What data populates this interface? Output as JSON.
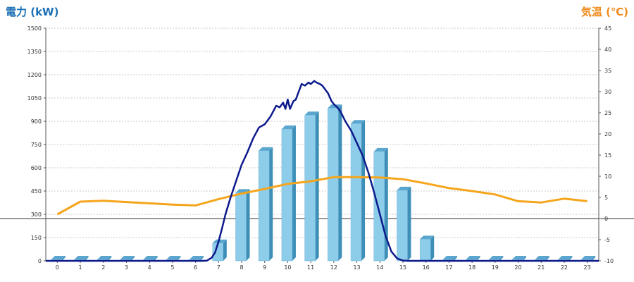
{
  "chart_data": {
    "type": "bar",
    "title": "",
    "left_axis": {
      "label": "電力 (kW)",
      "range": [
        0,
        1500
      ],
      "ticks": [
        0,
        150,
        300,
        450,
        600,
        750,
        900,
        1050,
        1200,
        1350,
        1500
      ]
    },
    "right_axis": {
      "label": "気温 (℃)",
      "range": [
        -10,
        45
      ],
      "ticks": [
        -10,
        -5,
        0,
        5,
        10,
        15,
        20,
        25,
        30,
        35,
        40,
        45
      ]
    },
    "categories": [
      "0",
      "1",
      "2",
      "3",
      "4",
      "5",
      "6",
      "7",
      "8",
      "9",
      "10",
      "11",
      "12",
      "13",
      "14",
      "15",
      "16",
      "17",
      "18",
      "19",
      "20",
      "21",
      "22",
      "23"
    ],
    "grid": true,
    "legend": "none",
    "series": [
      {
        "type": "bar",
        "axis": "left",
        "values": [
          0,
          0,
          0,
          0,
          0,
          0,
          0,
          115,
          440,
          710,
          850,
          940,
          985,
          885,
          705,
          455,
          140,
          0,
          0,
          0,
          0,
          0,
          0,
          0
        ]
      },
      {
        "type": "line",
        "axis": "right",
        "x": [
          0,
          1,
          2,
          3,
          4,
          5,
          6,
          7,
          8,
          9,
          10,
          11,
          12,
          13,
          14,
          15,
          16,
          17,
          18,
          19,
          20,
          21,
          22,
          23
        ],
        "values": [
          1.0,
          4.0,
          4.2,
          3.9,
          3.6,
          3.3,
          3.1,
          4.6,
          5.9,
          7.0,
          8.2,
          8.8,
          9.8,
          9.8,
          9.7,
          9.3,
          8.3,
          7.2,
          6.5,
          5.7,
          4.1,
          3.8,
          4.7,
          4.1
        ]
      },
      {
        "type": "line",
        "axis": "left",
        "x": [
          6.3,
          6.5,
          6.7,
          6.85,
          7.0,
          7.15,
          7.3,
          7.5,
          7.75,
          8.0,
          8.25,
          8.5,
          8.75,
          9.0,
          9.25,
          9.5,
          9.65,
          9.8,
          9.9,
          10.0,
          10.1,
          10.25,
          10.35,
          10.5,
          10.6,
          10.75,
          10.9,
          11.0,
          11.15,
          11.25,
          11.4,
          11.5,
          11.6,
          11.75,
          11.9,
          12.0,
          12.15,
          12.3,
          12.5,
          12.75,
          13.0,
          13.25,
          13.5,
          13.75,
          14.0,
          14.25,
          14.5,
          14.75,
          15.0,
          15.25,
          15.5,
          15.75,
          16.0,
          16.25,
          16.5,
          16.75,
          17.0
        ],
        "values": [
          0,
          2,
          20,
          55,
          125,
          210,
          300,
          400,
          510,
          620,
          700,
          790,
          860,
          880,
          930,
          1000,
          990,
          1020,
          980,
          1040,
          980,
          1030,
          1040,
          1100,
          1140,
          1130,
          1150,
          1140,
          1160,
          1150,
          1140,
          1130,
          1110,
          1080,
          1030,
          1010,
          990,
          960,
          900,
          840,
          760,
          680,
          570,
          440,
          300,
          160,
          60,
          15,
          2,
          0,
          0,
          0,
          0,
          0,
          0,
          0,
          0
        ]
      }
    ]
  }
}
